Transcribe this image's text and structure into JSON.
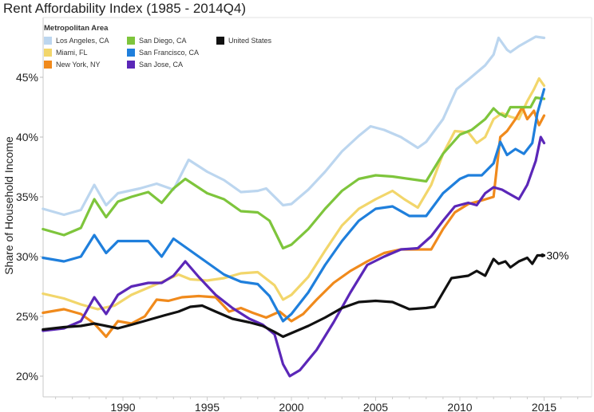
{
  "chart_data": {
    "type": "line",
    "title": "Rent Affordability Index (1985 - 2014Q4)",
    "xlabel": "",
    "ylabel": "Share of Household Income",
    "xlim": [
      1985,
      2018
    ],
    "ylim": [
      18.3,
      48.8
    ],
    "x_ticks": [
      1990,
      1995,
      2000,
      2005,
      2010,
      2015
    ],
    "x_tick_labels": [
      "1990",
      "1995",
      "2000",
      "2005",
      "2010",
      "2015"
    ],
    "y_ticks": [
      20,
      25,
      30,
      35,
      40,
      45
    ],
    "y_tick_labels": [
      "20%",
      "25%",
      "30%",
      "35%",
      "40%",
      "45%"
    ],
    "grid": false,
    "legend": {
      "title": "Metropolitan Area",
      "placement": "top-left"
    },
    "annotations": [
      {
        "series": "United States",
        "text": "30%",
        "x": 2014.9,
        "y": 30.1
      }
    ],
    "series": [
      {
        "name": "Los Angeles, CA",
        "color": "#bcd6ef",
        "x": [
          1985.25,
          1986.5,
          1987.5,
          1988.3,
          1989,
          1989.7,
          1991,
          1992,
          1993,
          1993.9,
          1995,
          1996,
          1997,
          1998,
          1998.5,
          1999.5,
          2000,
          2001,
          2002,
          2003,
          2004,
          2004.7,
          2005.5,
          2006.5,
          2007.5,
          2008,
          2009,
          2009.8,
          2010.5,
          2011.5,
          2012,
          2012.3,
          2012.8,
          2013,
          2013.5,
          2014,
          2014.5,
          2015
        ],
        "y": [
          34.0,
          33.5,
          33.9,
          36.0,
          34.3,
          35.3,
          35.7,
          36.1,
          35.6,
          38.1,
          37.1,
          36.4,
          35.4,
          35.5,
          35.7,
          34.3,
          34.4,
          35.6,
          37.1,
          38.8,
          40.1,
          40.9,
          40.6,
          40.0,
          39.1,
          39.6,
          41.5,
          44.0,
          44.8,
          46.0,
          46.9,
          48.3,
          47.3,
          47.1,
          47.6,
          48.0,
          48.4,
          48.3
        ]
      },
      {
        "name": "Miami, FL",
        "color": "#f2d66b",
        "x": [
          1985.25,
          1986.5,
          1987.5,
          1988.5,
          1989.5,
          1990.5,
          1991.5,
          1992.5,
          1993.3,
          1994,
          1995,
          1996,
          1997,
          1998,
          1999,
          1999.5,
          2000,
          2001,
          2002,
          2003,
          2004,
          2005,
          2006,
          2006.7,
          2007.5,
          2008.3,
          2009,
          2009.7,
          2010.5,
          2011,
          2011.5,
          2012,
          2012.5,
          2013,
          2013.5,
          2014,
          2014.4,
          2014.7,
          2015
        ],
        "y": [
          26.9,
          26.5,
          26.0,
          25.6,
          25.9,
          26.8,
          27.4,
          28.0,
          28.5,
          28.1,
          28.0,
          28.2,
          28.6,
          28.7,
          27.6,
          26.4,
          26.8,
          28.3,
          30.5,
          32.6,
          34.0,
          34.8,
          35.5,
          34.8,
          34.1,
          36.0,
          38.6,
          40.5,
          40.4,
          39.5,
          40.0,
          41.5,
          42.0,
          41.7,
          41.5,
          43.0,
          44.0,
          44.9,
          44.3
        ]
      },
      {
        "name": "New York, NY",
        "color": "#f08a1c",
        "x": [
          1985.25,
          1986.5,
          1987.5,
          1988.3,
          1989,
          1989.7,
          1990.5,
          1991.3,
          1992,
          1992.7,
          1993.5,
          1994.5,
          1995.5,
          1996.3,
          1997,
          1997.7,
          1998.5,
          1999.3,
          2000,
          2000.7,
          2001.5,
          2002.5,
          2003.5,
          2004.5,
          2005.5,
          2006.5,
          2007.5,
          2008.3,
          2009,
          2009.7,
          2010.5,
          2011.3,
          2012,
          2012.4,
          2012.8,
          2013.3,
          2013.7,
          2014,
          2014.4,
          2014.7,
          2015
        ],
        "y": [
          25.3,
          25.6,
          25.2,
          24.4,
          23.3,
          24.6,
          24.4,
          25.0,
          26.4,
          26.3,
          26.6,
          26.7,
          26.6,
          25.4,
          25.7,
          25.3,
          24.9,
          25.4,
          24.6,
          25.2,
          26.4,
          27.8,
          28.8,
          29.6,
          30.3,
          30.6,
          30.6,
          30.6,
          32.3,
          33.7,
          34.4,
          34.7,
          35.0,
          40.0,
          40.5,
          41.5,
          42.5,
          41.5,
          42.2,
          41.0,
          41.8
        ]
      },
      {
        "name": "San Diego, CA",
        "color": "#7ec53c",
        "x": [
          1985.25,
          1986.5,
          1987.5,
          1988.3,
          1989,
          1989.7,
          1990.5,
          1991.5,
          1992.3,
          1993,
          1993.7,
          1995,
          1996,
          1997,
          1998,
          1998.7,
          1999.5,
          2000,
          2001,
          2002,
          2003,
          2004,
          2005,
          2006,
          2007,
          2008,
          2009,
          2010,
          2010.7,
          2011.5,
          2012,
          2012.3,
          2012.7,
          2013,
          2013.7,
          2014.2,
          2014.5,
          2015
        ],
        "y": [
          32.3,
          31.8,
          32.4,
          34.8,
          33.3,
          34.6,
          35.0,
          35.4,
          34.5,
          35.7,
          36.5,
          35.3,
          34.8,
          33.8,
          33.7,
          33.0,
          30.7,
          31.0,
          32.3,
          34.0,
          35.5,
          36.5,
          36.8,
          36.7,
          36.5,
          36.3,
          38.6,
          40.2,
          40.6,
          41.5,
          42.4,
          42.0,
          41.7,
          42.5,
          42.5,
          42.5,
          43.3,
          43.2
        ]
      },
      {
        "name": "San Francisco, CA",
        "color": "#1f7fdc",
        "x": [
          1985.25,
          1986.5,
          1987.5,
          1988.3,
          1989,
          1989.7,
          1990.5,
          1991.5,
          1992.3,
          1993,
          1993.7,
          1995,
          1996,
          1997,
          1998,
          1998.7,
          1999.5,
          2000,
          2001,
          2002,
          2003,
          2004,
          2005,
          2006,
          2007,
          2008,
          2009,
          2010,
          2010.5,
          2011.3,
          2012,
          2012.4,
          2012.8,
          2013.3,
          2013.8,
          2014.3,
          2014.6,
          2015
        ],
        "y": [
          29.9,
          29.6,
          30.0,
          31.8,
          30.3,
          31.3,
          31.3,
          31.3,
          30.0,
          31.5,
          30.8,
          29.5,
          28.5,
          27.9,
          27.7,
          26.7,
          24.6,
          25.2,
          27.0,
          29.3,
          31.3,
          33.0,
          34.0,
          34.2,
          33.4,
          33.4,
          35.3,
          36.5,
          36.8,
          36.8,
          37.8,
          39.6,
          38.5,
          39.0,
          38.6,
          39.5,
          42.0,
          44.0
        ]
      },
      {
        "name": "San Jose, CA",
        "color": "#5b27b8",
        "x": [
          1985.25,
          1986.5,
          1987.5,
          1988.3,
          1989,
          1989.7,
          1990.5,
          1991.5,
          1992.3,
          1993,
          1993.7,
          1994.5,
          1995.5,
          1996.5,
          1997.5,
          1998.3,
          1999,
          1999.5,
          1999.9,
          2000.5,
          2001.5,
          2002.5,
          2003.5,
          2004.5,
          2005.5,
          2006.5,
          2007.5,
          2008.3,
          2009,
          2009.7,
          2010.5,
          2011,
          2011.5,
          2012,
          2012.5,
          2013,
          2013.5,
          2014,
          2014.5,
          2014.8,
          2015
        ],
        "y": [
          23.8,
          24.0,
          24.6,
          26.6,
          25.2,
          26.8,
          27.5,
          27.8,
          27.8,
          28.4,
          29.6,
          28.3,
          26.8,
          25.7,
          24.8,
          24.3,
          23.5,
          21.0,
          20.0,
          20.5,
          22.2,
          24.5,
          27.0,
          29.3,
          30.0,
          30.6,
          30.7,
          31.7,
          33.0,
          34.2,
          34.5,
          34.3,
          35.3,
          35.8,
          35.6,
          35.2,
          34.8,
          36.0,
          38.0,
          40.0,
          39.5
        ]
      },
      {
        "name": "United States",
        "color": "#111111",
        "x": [
          1985.25,
          1986.5,
          1987.5,
          1988.3,
          1989,
          1989.7,
          1990.5,
          1991.5,
          1992.5,
          1993.3,
          1994,
          1994.7,
          1995.5,
          1996.5,
          1997.5,
          1998.3,
          1999,
          1999.5,
          2000,
          2001,
          2002,
          2003,
          2004,
          2005,
          2006,
          2007,
          2008,
          2008.5,
          2009,
          2009.5,
          2010,
          2010.5,
          2011,
          2011.5,
          2012,
          2012.3,
          2012.7,
          2013,
          2013.5,
          2014,
          2014.3,
          2014.6,
          2015
        ],
        "y": [
          23.9,
          24.1,
          24.2,
          24.4,
          24.2,
          24.0,
          24.3,
          24.7,
          25.1,
          25.4,
          25.8,
          25.9,
          25.4,
          24.8,
          24.5,
          24.2,
          23.7,
          23.3,
          23.6,
          24.2,
          24.9,
          25.7,
          26.2,
          26.3,
          26.2,
          25.6,
          25.7,
          25.8,
          27.0,
          28.2,
          28.3,
          28.4,
          28.8,
          28.4,
          29.8,
          29.4,
          29.6,
          29.1,
          29.6,
          29.9,
          29.4,
          30.1,
          30.1
        ]
      }
    ]
  }
}
